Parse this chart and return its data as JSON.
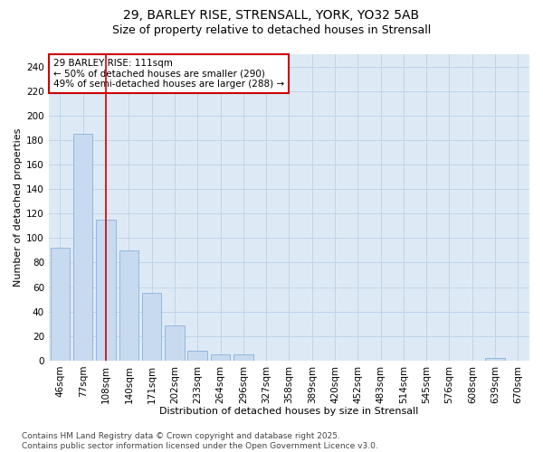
{
  "title_line1": "29, BARLEY RISE, STRENSALL, YORK, YO32 5AB",
  "title_line2": "Size of property relative to detached houses in Strensall",
  "xlabel": "Distribution of detached houses by size in Strensall",
  "ylabel": "Number of detached properties",
  "categories": [
    "46sqm",
    "77sqm",
    "108sqm",
    "140sqm",
    "171sqm",
    "202sqm",
    "233sqm",
    "264sqm",
    "296sqm",
    "327sqm",
    "358sqm",
    "389sqm",
    "420sqm",
    "452sqm",
    "483sqm",
    "514sqm",
    "545sqm",
    "576sqm",
    "608sqm",
    "639sqm",
    "670sqm"
  ],
  "values": [
    92,
    185,
    115,
    90,
    55,
    29,
    8,
    5,
    5,
    0,
    0,
    0,
    0,
    0,
    0,
    0,
    0,
    0,
    0,
    2,
    0
  ],
  "bar_color": "#c8daf0",
  "bar_edgecolor": "#8ab0d8",
  "vline_x_index": 2,
  "vline_color": "#cc0000",
  "annotation_text": "29 BARLEY RISE: 111sqm\n← 50% of detached houses are smaller (290)\n49% of semi-detached houses are larger (288) →",
  "annotation_box_facecolor": "#ffffff",
  "annotation_box_edgecolor": "#cc0000",
  "ylim": [
    0,
    250
  ],
  "yticks": [
    0,
    20,
    40,
    60,
    80,
    100,
    120,
    140,
    160,
    180,
    200,
    220,
    240
  ],
  "grid_color": "#c0d4e8",
  "fig_background_color": "#ffffff",
  "plot_background_color": "#ddeaf5",
  "footnote": "Contains HM Land Registry data © Crown copyright and database right 2025.\nContains public sector information licensed under the Open Government Licence v3.0.",
  "title_fontsize": 10,
  "subtitle_fontsize": 9,
  "axis_label_fontsize": 8,
  "tick_fontsize": 7.5,
  "annotation_fontsize": 7.5,
  "footnote_fontsize": 6.5
}
